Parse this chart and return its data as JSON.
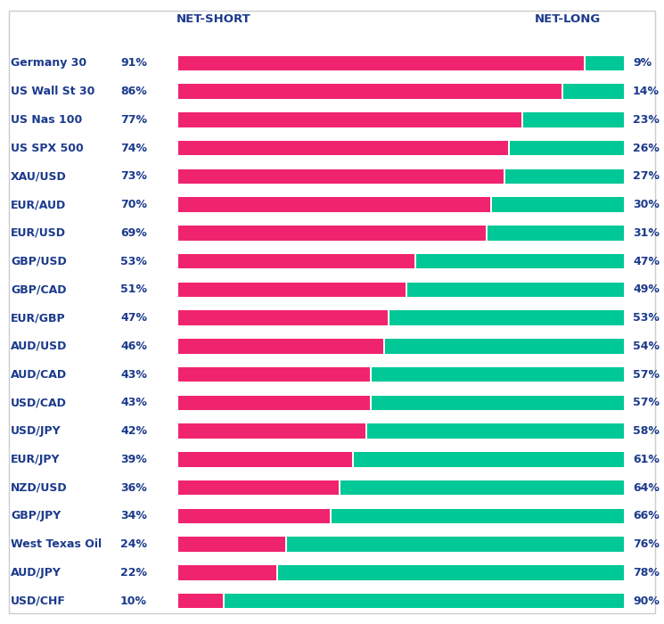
{
  "instruments": [
    "Germany 30",
    "US Wall St 30",
    "US Nas 100",
    "US SPX 500",
    "XAU/USD",
    "EUR/AUD",
    "EUR/USD",
    "GBP/USD",
    "GBP/CAD",
    "EUR/GBP",
    "AUD/USD",
    "AUD/CAD",
    "USD/CAD",
    "USD/JPY",
    "EUR/JPY",
    "NZD/USD",
    "GBP/JPY",
    "West Texas Oil",
    "AUD/JPY",
    "USD/CHF"
  ],
  "short_pct": [
    91,
    86,
    77,
    74,
    73,
    70,
    69,
    53,
    51,
    47,
    46,
    43,
    43,
    42,
    39,
    36,
    34,
    24,
    22,
    10
  ],
  "long_pct": [
    9,
    14,
    23,
    26,
    27,
    30,
    31,
    47,
    49,
    53,
    54,
    57,
    57,
    58,
    61,
    64,
    66,
    76,
    78,
    90
  ],
  "short_color": "#F0246E",
  "long_color": "#00C896",
  "bg_color": "#FFFFFF",
  "text_color": "#1B3A8C",
  "header_color": "#1B3A8C",
  "title_net_short": "NET-SHORT",
  "title_net_long": "NET-LONG",
  "bar_height": 0.52,
  "figwidth": 7.45,
  "figheight": 7.0,
  "dpi": 100,
  "border_color": "#CCCCCC",
  "header_fontsize": 9.5,
  "label_fontsize": 9.0,
  "pct_fontsize": 9.0
}
